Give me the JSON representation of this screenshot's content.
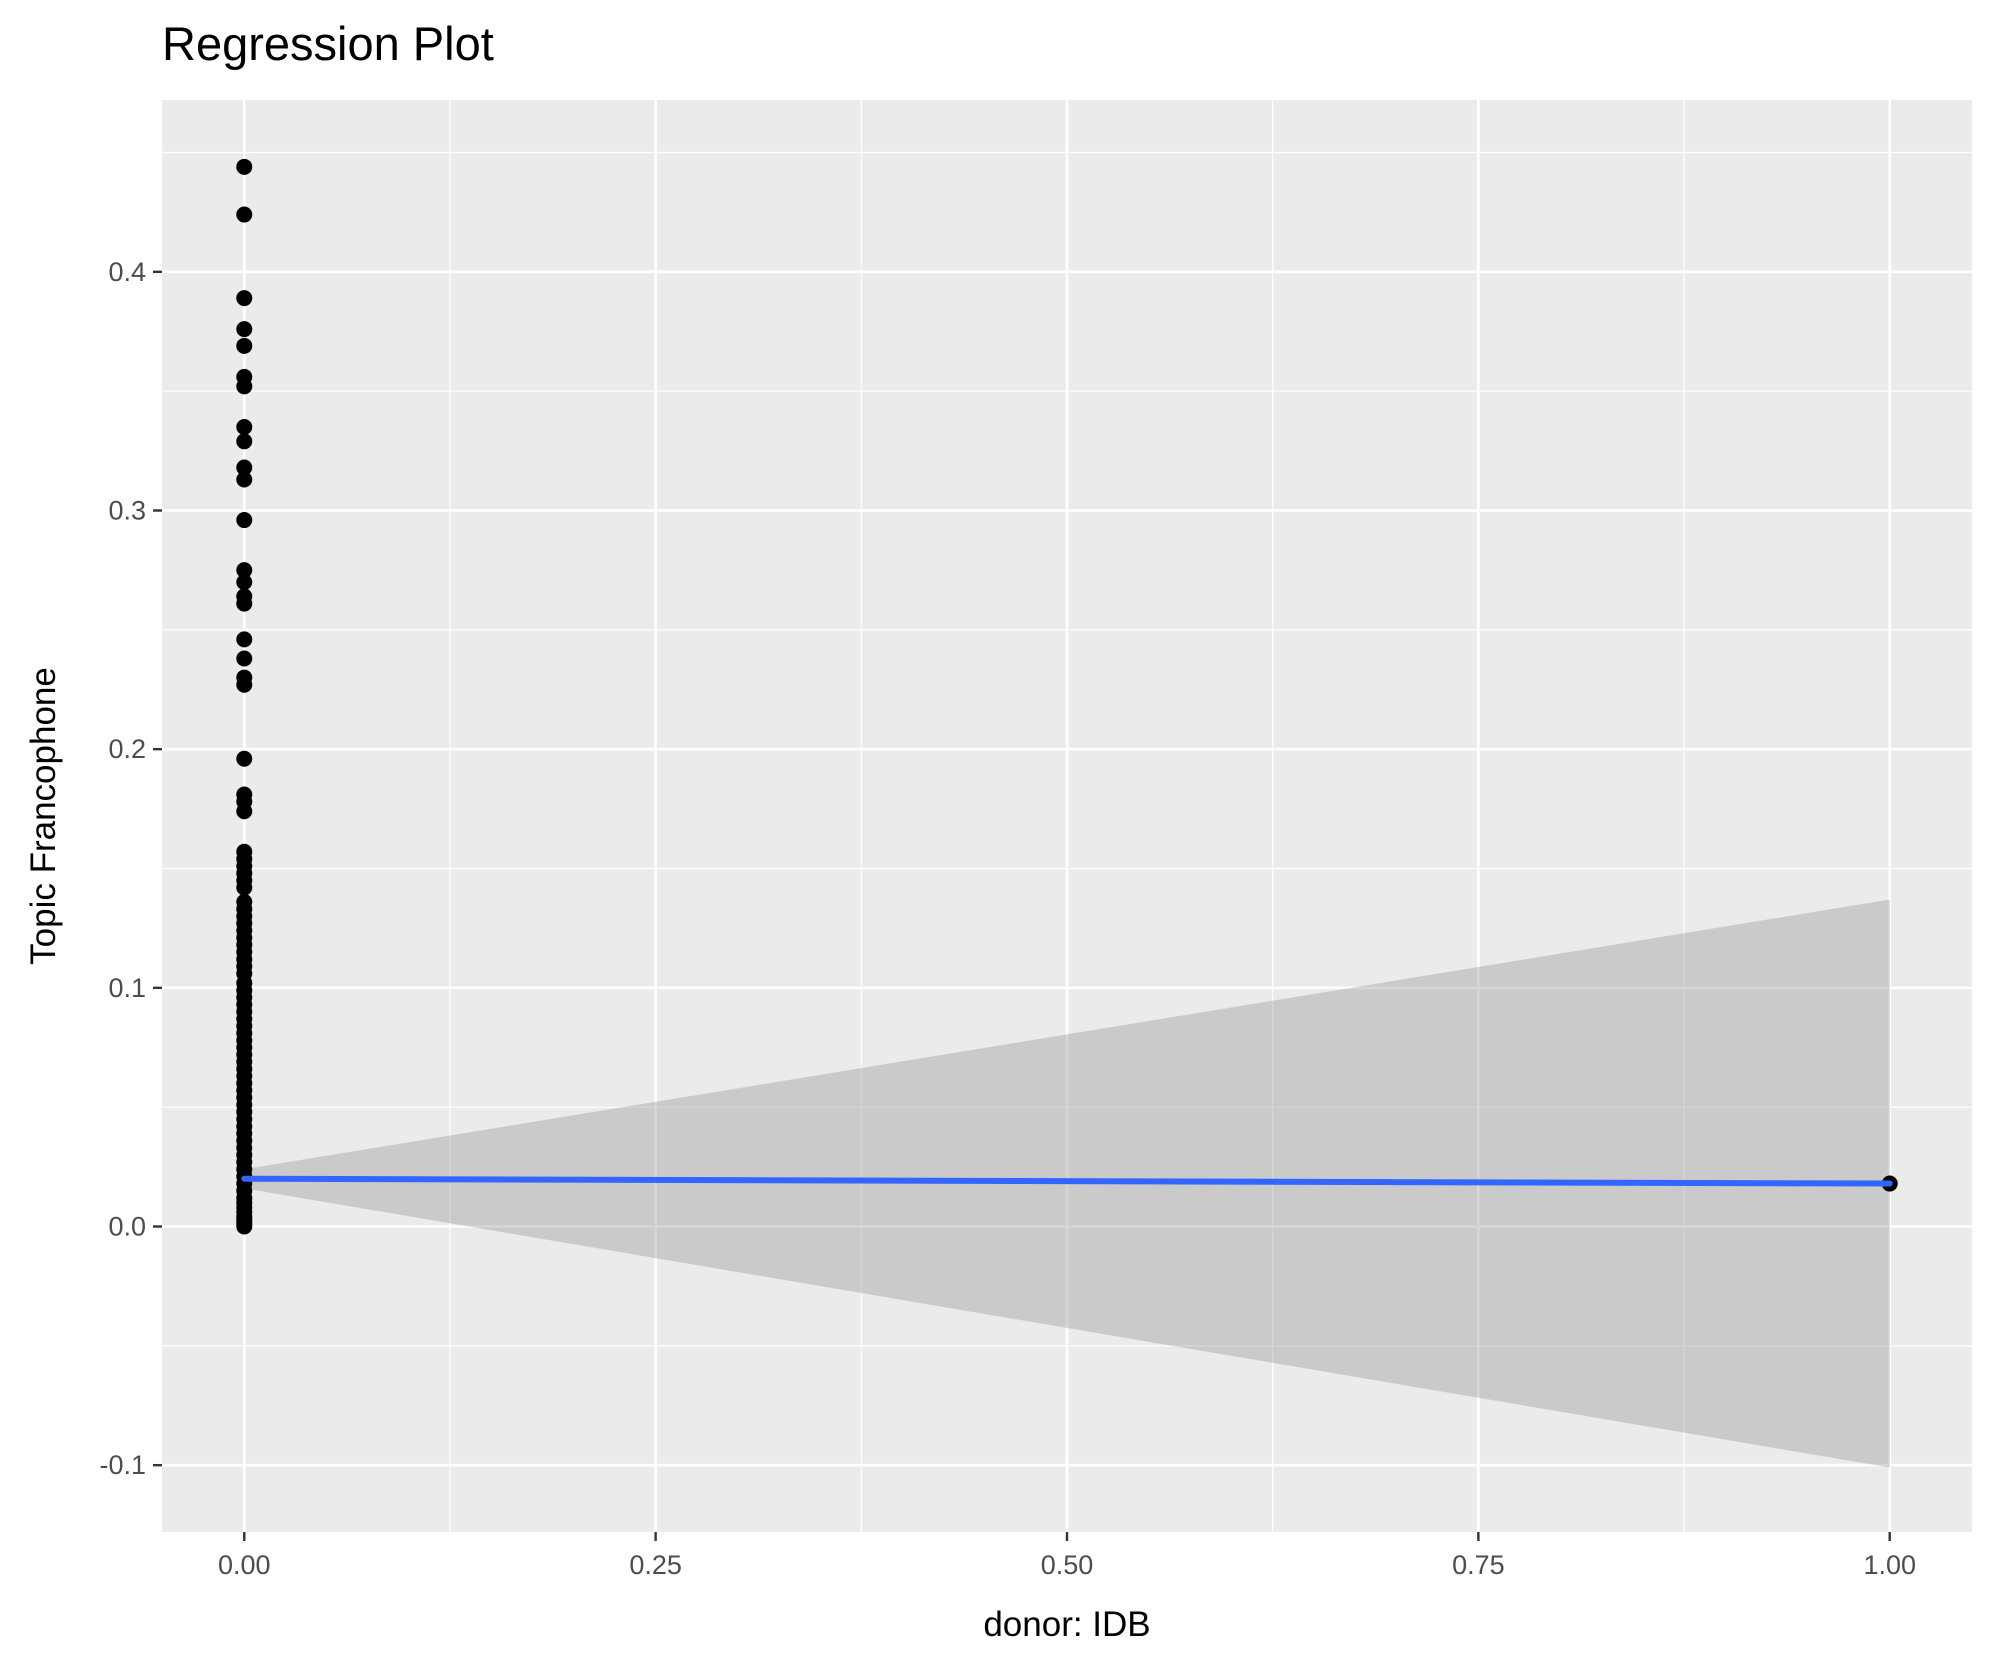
{
  "chart_data": {
    "type": "scatter",
    "title": "Regression Plot",
    "xlabel": "donor: IDB",
    "ylabel": "Topic Francophone",
    "xlim": [
      -0.05,
      1.05
    ],
    "ylim": [
      -0.128,
      0.472
    ],
    "x_ticks": [
      {
        "value": 0,
        "label": "0.00"
      },
      {
        "value": 0.25,
        "label": "0.25"
      },
      {
        "value": 0.5,
        "label": "0.50"
      },
      {
        "value": 0.75,
        "label": "0.75"
      },
      {
        "value": 1,
        "label": "1.00"
      }
    ],
    "y_ticks": [
      {
        "value": -0.1,
        "label": "-0.1"
      },
      {
        "value": 0,
        "label": "0.0"
      },
      {
        "value": 0.1,
        "label": "0.1"
      },
      {
        "value": 0.2,
        "label": "0.2"
      },
      {
        "value": 0.3,
        "label": "0.3"
      },
      {
        "value": 0.4,
        "label": "0.4"
      }
    ],
    "grid": true,
    "legend": "none",
    "points": {
      "x0_values": [
        0.444,
        0.424,
        0.389,
        0.376,
        0.369,
        0.356,
        0.352,
        0.335,
        0.329,
        0.318,
        0.313,
        0.296,
        0.275,
        0.27,
        0.264,
        0.261,
        0.246,
        0.238,
        0.23,
        0.227,
        0.196,
        0.181,
        0.178,
        0.174,
        0.157,
        0.154,
        0.151,
        0.148,
        0.145,
        0.142,
        0.136,
        0.133,
        0.13,
        0.127,
        0.124,
        0.121,
        0.118,
        0.115,
        0.112,
        0.109,
        0.106,
        0.102,
        0.099,
        0.096,
        0.093,
        0.09,
        0.087,
        0.084,
        0.081,
        0.078,
        0.075,
        0.072,
        0.069,
        0.066,
        0.063,
        0.06,
        0.057,
        0.054,
        0.051,
        0.048,
        0.045,
        0.042,
        0.039,
        0.036,
        0.033,
        0.03,
        0.027,
        0.024,
        0.021,
        0.018,
        0.015,
        0.012,
        0.01,
        0.008,
        0.006,
        0.004,
        0.003,
        0.002,
        0.001,
        0.0
      ],
      "x1_values": [
        0.018
      ]
    },
    "regression": {
      "x": [
        0,
        1
      ],
      "y": [
        0.02,
        0.018
      ]
    },
    "confidence_band": {
      "x": [
        0,
        1
      ],
      "lower": [
        0.016,
        -0.101
      ],
      "upper": [
        0.024,
        0.137
      ]
    },
    "colors": {
      "panel": "#ebebeb",
      "grid": "#ffffff",
      "point": "#000000",
      "line": "#3366ff",
      "band": "#999999"
    }
  }
}
